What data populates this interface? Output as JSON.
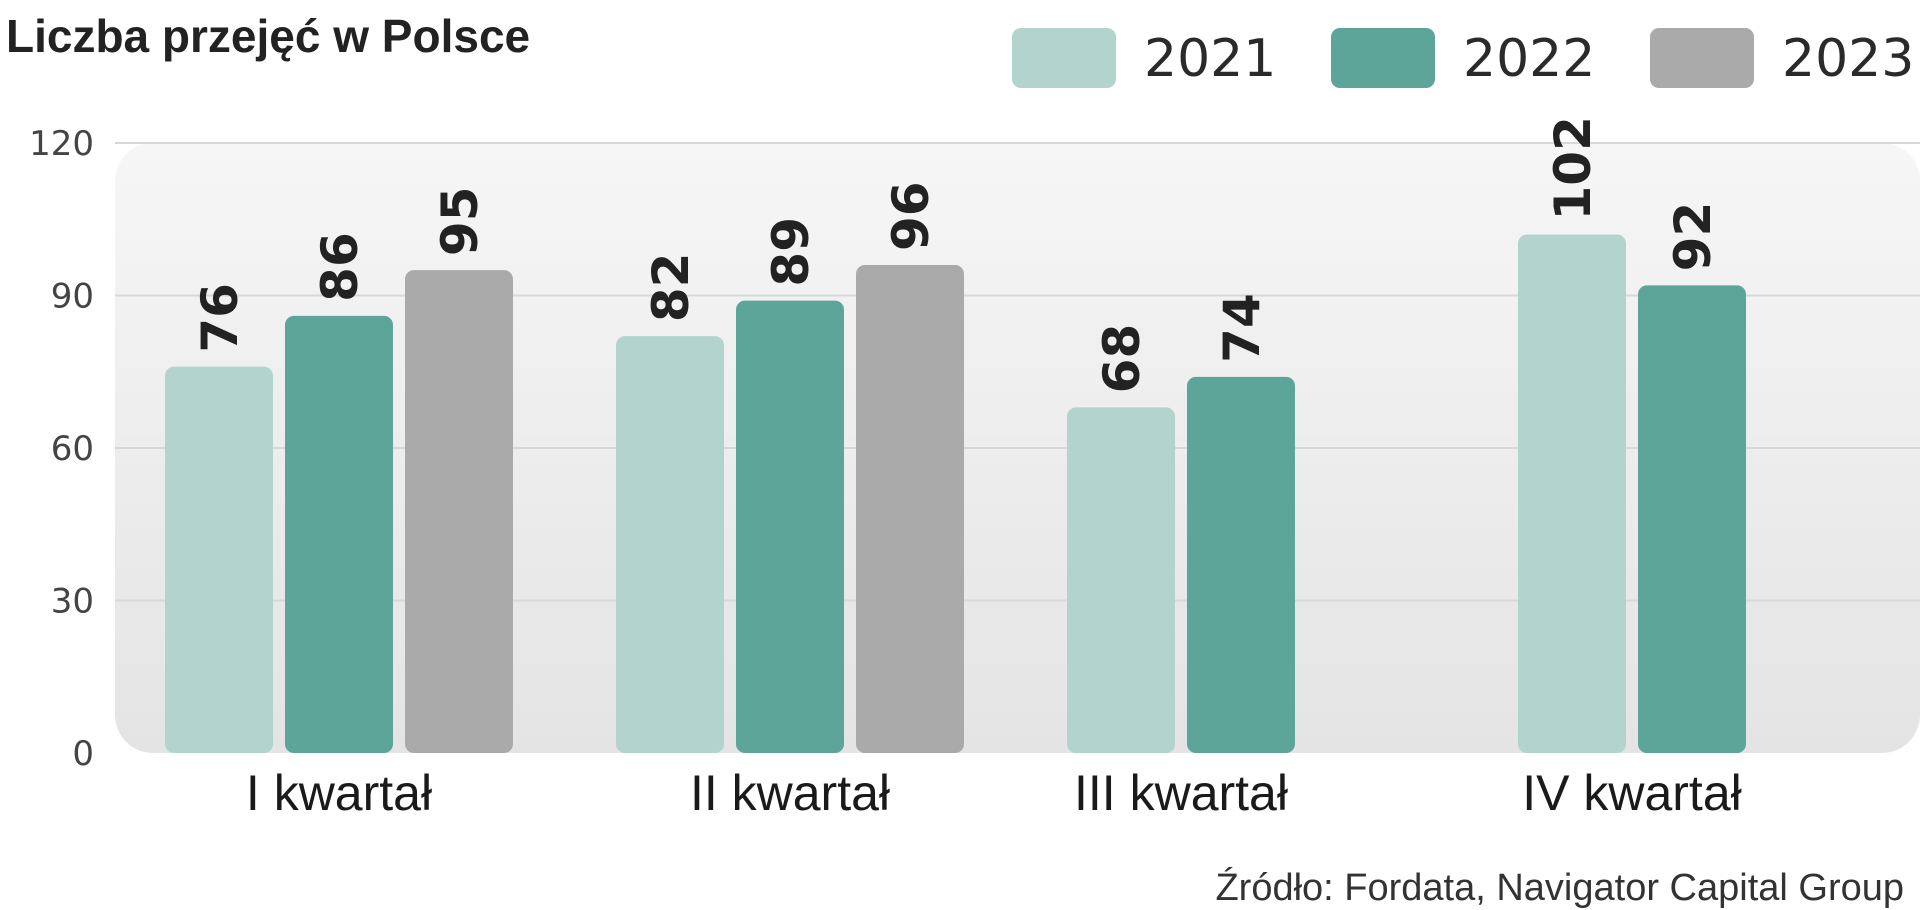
{
  "chart_data": {
    "type": "bar",
    "title": "Liczba przejęć w Polsce",
    "categories": [
      "I kwartał",
      "II kwartał",
      "III kwartał",
      "IV kwartał"
    ],
    "series": [
      {
        "name": "2021",
        "values": [
          76,
          82,
          68,
          102
        ],
        "color": "#b3d4cd"
      },
      {
        "name": "2022",
        "values": [
          86,
          89,
          74,
          92
        ],
        "color": "#5da598"
      },
      {
        "name": "2023",
        "values": [
          95,
          96,
          null,
          null
        ],
        "color": "#aaaaaa"
      }
    ],
    "y_ticks": [
      "0",
      "30",
      "60",
      "90",
      "120"
    ],
    "ylim": [
      0,
      120
    ],
    "grid": true,
    "legend_position": "top-right",
    "source": "Źródło: Fordata, Navigator Capital Group"
  }
}
